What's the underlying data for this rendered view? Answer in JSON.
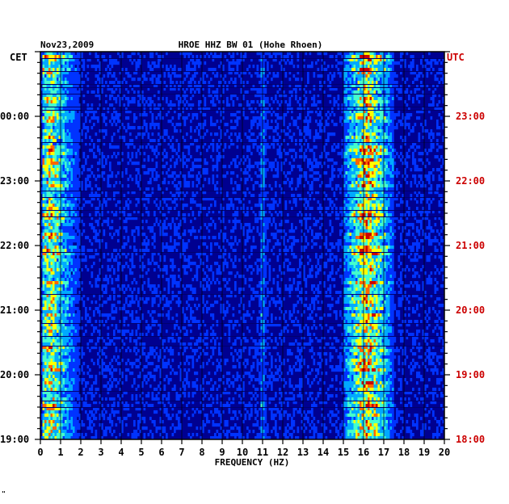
{
  "chart_data": {
    "type": "heatmap",
    "title": "HROE HHZ BW 01 (Hohe Rhoen)",
    "date": "Nov23,2009",
    "xlabel": "FREQUENCY (HZ)",
    "xlim": [
      0,
      20
    ],
    "x_ticks": [
      "0",
      "1",
      "2",
      "3",
      "4",
      "5",
      "6",
      "7",
      "8",
      "9",
      "10",
      "11",
      "12",
      "13",
      "14",
      "15",
      "16",
      "17",
      "18",
      "19",
      "20"
    ],
    "left_axis": {
      "label": "CET",
      "ticks": [
        "00:00",
        "23:00",
        "22:00",
        "21:00",
        "20:00",
        "19:00"
      ],
      "label_color": "#000000"
    },
    "right_axis": {
      "label": "UTC",
      "ticks": [
        "23:00",
        "22:00",
        "21:00",
        "20:00",
        "19:00",
        "18:00"
      ],
      "label_color": "#cc0000"
    },
    "colormap": [
      "#0000a0",
      "#0033ff",
      "#00aaff",
      "#44ffcc",
      "#ffff00",
      "#ff6600",
      "#cc0000"
    ],
    "background_color": "#000090",
    "bands": [
      {
        "name": "low-frequency band",
        "from_hz": 0.1,
        "to_hz": 2.6,
        "peak_hz": 0.5,
        "intensity": 0.8
      },
      {
        "name": "16 Hz band",
        "from_hz": 15.0,
        "to_hz": 17.5,
        "peak_hz": 16.2,
        "intensity": 1.0
      },
      {
        "name": "11 Hz line",
        "from_hz": 10.9,
        "to_hz": 11.2,
        "peak_hz": 11.0,
        "intensity": 0.35
      }
    ]
  },
  "footer_mark": "\""
}
